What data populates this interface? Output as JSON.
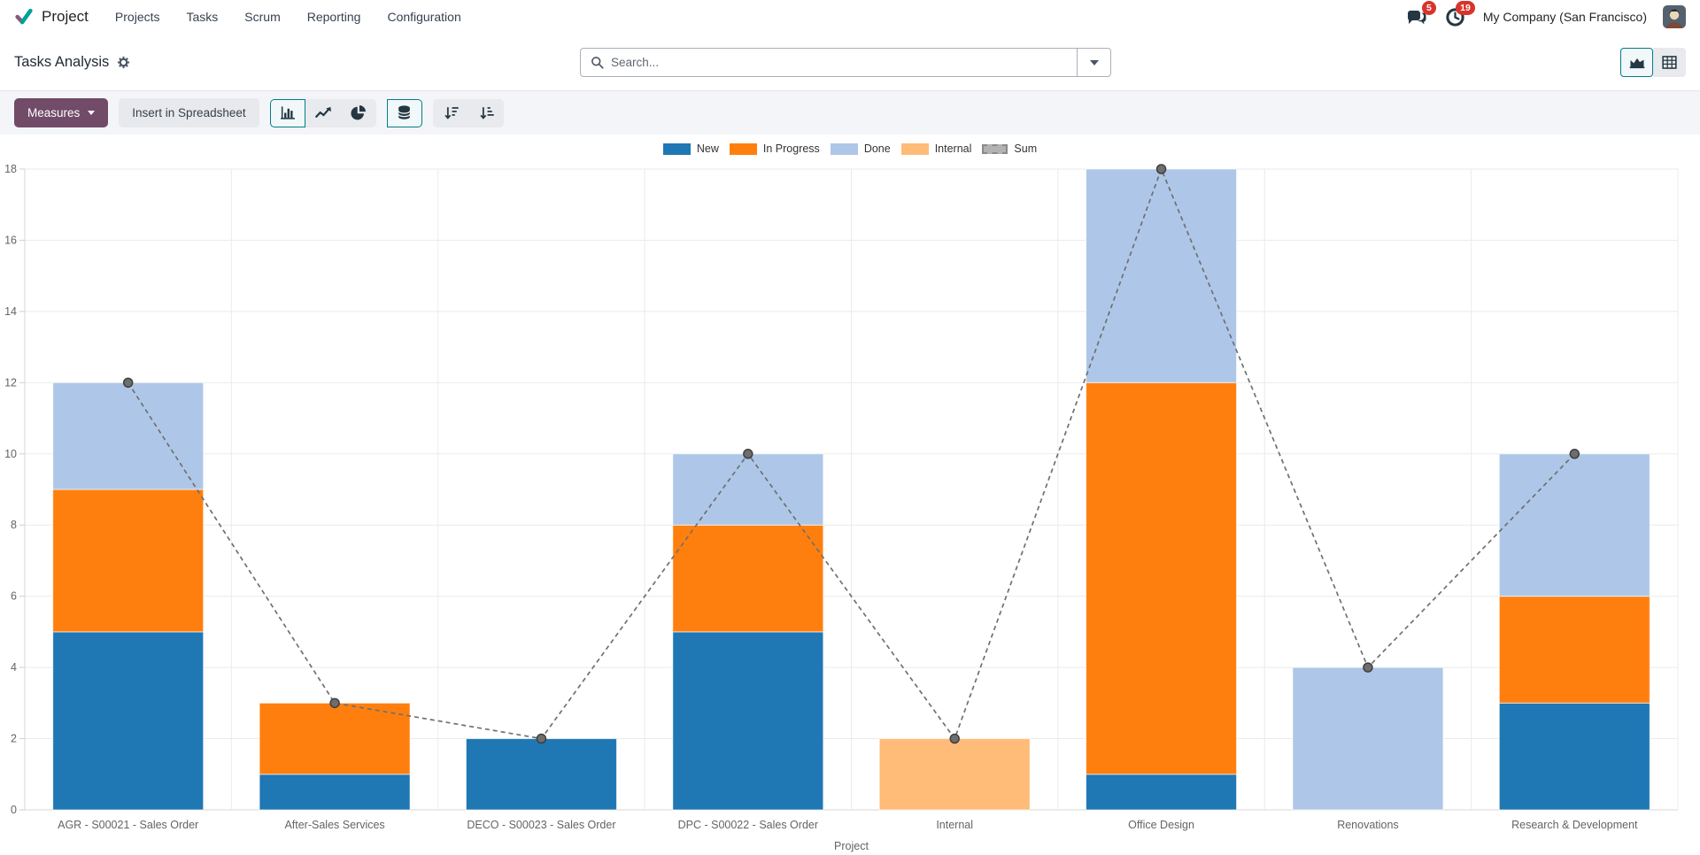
{
  "navbar": {
    "app_name": "Project",
    "menu_items": [
      "Projects",
      "Tasks",
      "Scrum",
      "Reporting",
      "Configuration"
    ],
    "message_badge": "5",
    "activity_badge": "19",
    "company": "My Company (San Francisco)"
  },
  "control_panel": {
    "title": "Tasks Analysis",
    "search_placeholder": "Search..."
  },
  "toolbar": {
    "measures_label": "Measures",
    "insert_label": "Insert in Spreadsheet"
  },
  "colors": {
    "brand_purple": "#714B67",
    "logo_purple": "#875A7B",
    "logo_teal": "#00A09D",
    "active_teal": "#017e84",
    "badge_red": "#d9342b"
  },
  "chart_data": {
    "type": "bar",
    "stacked": true,
    "title": "Tasks Analysis",
    "xlabel": "Project",
    "ylabel": "",
    "ylim": [
      0,
      18
    ],
    "ytick_step": 2,
    "grid": true,
    "legend_position": "top",
    "categories": [
      "AGR - S00021 - Sales Order",
      "After-Sales Services",
      "DECO - S00023 - Sales Order",
      "DPC - S00022 - Sales Order",
      "Internal",
      "Office Design",
      "Renovations",
      "Research & Development"
    ],
    "series": [
      {
        "name": "New",
        "color": "#1f77b4",
        "values": [
          5,
          1,
          2,
          5,
          0,
          1,
          0,
          3
        ]
      },
      {
        "name": "In Progress",
        "color": "#ff7f0e",
        "values": [
          4,
          2,
          0,
          3,
          0,
          11,
          0,
          3
        ]
      },
      {
        "name": "Done",
        "color": "#aec7e8",
        "values": [
          3,
          0,
          0,
          2,
          0,
          6,
          4,
          4
        ]
      },
      {
        "name": "Internal",
        "color": "#ffbb78",
        "values": [
          0,
          0,
          0,
          0,
          2,
          0,
          0,
          0
        ]
      }
    ],
    "sum_line": {
      "name": "Sum",
      "color": "#707070",
      "values": [
        12,
        3,
        2,
        10,
        2,
        18,
        4,
        10
      ]
    }
  }
}
